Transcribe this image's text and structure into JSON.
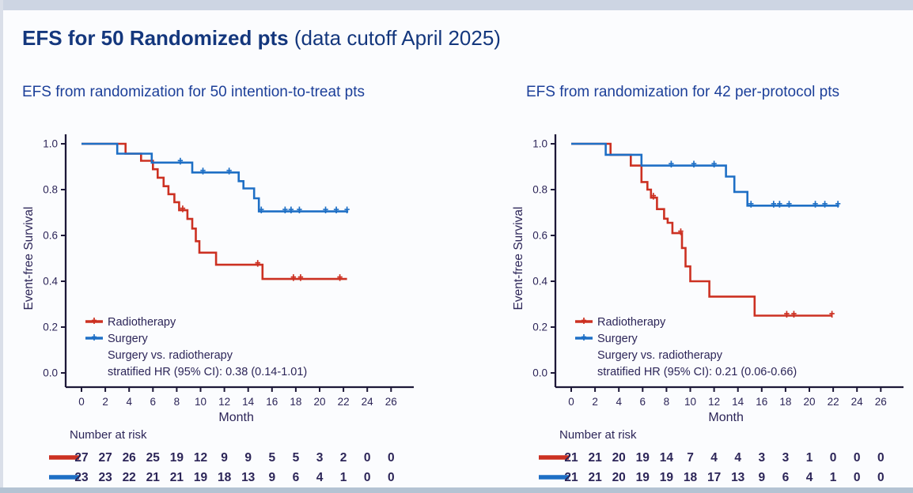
{
  "slide": {
    "title_bold": "EFS for 50 Randomized pts",
    "title_tail": " (data cutoff April 2025)"
  },
  "colors": {
    "title": "#14377d",
    "subtitle": "#1c3f99",
    "axis_line": "#1d1838",
    "axis_text": "#2c2558",
    "radiotherapy": "#cc3122",
    "surgery": "#1e6fc5",
    "background": "#fbfcfe"
  },
  "chart_data": [
    {
      "type": "line",
      "km_step": true,
      "subtitle": "EFS from randomization for 50 intention-to-treat pts",
      "xlabel": "Month",
      "ylabel": "Event-free Survival",
      "xticks": [
        0,
        2,
        4,
        6,
        8,
        10,
        12,
        14,
        16,
        18,
        20,
        22,
        24,
        26
      ],
      "yticks": [
        1.0,
        0.8,
        0.6,
        0.4,
        0.2,
        0.0
      ],
      "xlim": [
        0,
        26
      ],
      "ylim": [
        0,
        1
      ],
      "grid": false,
      "legend_position": "inside-bottom-left",
      "series": [
        {
          "name": "Radiotherapy",
          "color": "#cc3122",
          "steps": [
            [
              0,
              1.0
            ],
            [
              3.7,
              0.957
            ],
            [
              5.0,
              0.926
            ],
            [
              6.0,
              0.889
            ],
            [
              6.4,
              0.852
            ],
            [
              6.9,
              0.815
            ],
            [
              7.3,
              0.78
            ],
            [
              7.8,
              0.745
            ],
            [
              8.2,
              0.71
            ],
            [
              8.9,
              0.672
            ],
            [
              9.3,
              0.63
            ],
            [
              9.6,
              0.575
            ],
            [
              9.9,
              0.525
            ],
            [
              11.3,
              0.472
            ],
            [
              15.2,
              0.41
            ],
            [
              22.3,
              0.41
            ]
          ],
          "censors": [
            [
              8.5,
              0.71
            ],
            [
              14.8,
              0.472
            ],
            [
              17.8,
              0.41
            ],
            [
              18.4,
              0.41
            ],
            [
              21.7,
              0.41
            ]
          ]
        },
        {
          "name": "Surgery",
          "color": "#1e6fc5",
          "steps": [
            [
              0,
              1.0
            ],
            [
              3.0,
              0.957
            ],
            [
              5.9,
              0.918
            ],
            [
              9.3,
              0.875
            ],
            [
              13.2,
              0.837
            ],
            [
              13.6,
              0.805
            ],
            [
              14.5,
              0.762
            ],
            [
              14.9,
              0.705
            ],
            [
              22.4,
              0.705
            ]
          ],
          "censors": [
            [
              8.3,
              0.918
            ],
            [
              10.2,
              0.875
            ],
            [
              12.4,
              0.875
            ],
            [
              15.1,
              0.705
            ],
            [
              17.1,
              0.705
            ],
            [
              17.6,
              0.705
            ],
            [
              18.3,
              0.705
            ],
            [
              20.5,
              0.705
            ],
            [
              21.4,
              0.705
            ],
            [
              22.3,
              0.705
            ]
          ]
        }
      ],
      "note_lines": [
        "Surgery vs. radiotherapy",
        "stratified HR (95% CI): 0.38 (0.14-1.01)"
      ],
      "at_risk": {
        "label": "Number at risk",
        "rows": [
          {
            "name": "Radiotherapy",
            "color": "#cc3122",
            "values": [
              27,
              27,
              26,
              25,
              19,
              12,
              9,
              9,
              5,
              5,
              3,
              2,
              0,
              0
            ]
          },
          {
            "name": "Surgery",
            "color": "#1e6fc5",
            "values": [
              23,
              23,
              22,
              21,
              21,
              19,
              18,
              13,
              9,
              6,
              4,
              1,
              0,
              0
            ]
          }
        ]
      }
    },
    {
      "type": "line",
      "km_step": true,
      "subtitle": "EFS from randomization for 42 per-protocol pts",
      "xlabel": "Month",
      "ylabel": "Event-free Survival",
      "xticks": [
        0,
        2,
        4,
        6,
        8,
        10,
        12,
        14,
        16,
        18,
        20,
        22,
        24,
        26
      ],
      "yticks": [
        1.0,
        0.8,
        0.6,
        0.4,
        0.2,
        0.0
      ],
      "xlim": [
        0,
        26
      ],
      "ylim": [
        0,
        1
      ],
      "grid": false,
      "legend_position": "inside-bottom-left",
      "series": [
        {
          "name": "Radiotherapy",
          "color": "#cc3122",
          "steps": [
            [
              0,
              1.0
            ],
            [
              3.3,
              0.952
            ],
            [
              5.0,
              0.905
            ],
            [
              5.9,
              0.833
            ],
            [
              6.4,
              0.8
            ],
            [
              6.7,
              0.765
            ],
            [
              7.2,
              0.715
            ],
            [
              7.8,
              0.673
            ],
            [
              8.1,
              0.655
            ],
            [
              8.5,
              0.61
            ],
            [
              9.3,
              0.545
            ],
            [
              9.6,
              0.465
            ],
            [
              10.0,
              0.4
            ],
            [
              11.6,
              0.333
            ],
            [
              15.4,
              0.25
            ],
            [
              21.9,
              0.25
            ]
          ],
          "censors": [
            [
              6.9,
              0.765
            ],
            [
              9.2,
              0.61
            ],
            [
              18.1,
              0.25
            ],
            [
              18.7,
              0.25
            ],
            [
              21.9,
              0.25
            ]
          ]
        },
        {
          "name": "Surgery",
          "color": "#1e6fc5",
          "steps": [
            [
              0,
              1.0
            ],
            [
              2.9,
              0.952
            ],
            [
              5.9,
              0.905
            ],
            [
              13.0,
              0.857
            ],
            [
              13.7,
              0.79
            ],
            [
              14.8,
              0.73
            ],
            [
              22.5,
              0.73
            ]
          ],
          "censors": [
            [
              8.4,
              0.905
            ],
            [
              10.3,
              0.905
            ],
            [
              12.0,
              0.905
            ],
            [
              15.1,
              0.73
            ],
            [
              17.0,
              0.73
            ],
            [
              17.5,
              0.73
            ],
            [
              18.3,
              0.73
            ],
            [
              20.5,
              0.73
            ],
            [
              21.3,
              0.73
            ],
            [
              22.4,
              0.73
            ]
          ]
        }
      ],
      "note_lines": [
        "Surgery vs. radiotherapy",
        "stratified HR (95% CI): 0.21 (0.06-0.66)"
      ],
      "at_risk": {
        "label": "Number at risk",
        "rows": [
          {
            "name": "Radiotherapy",
            "color": "#cc3122",
            "values": [
              21,
              21,
              20,
              19,
              14,
              7,
              4,
              4,
              3,
              3,
              1,
              0,
              0,
              0
            ]
          },
          {
            "name": "Surgery",
            "color": "#1e6fc5",
            "values": [
              21,
              21,
              20,
              19,
              19,
              18,
              17,
              13,
              9,
              6,
              4,
              1,
              0,
              0
            ]
          }
        ]
      }
    }
  ]
}
